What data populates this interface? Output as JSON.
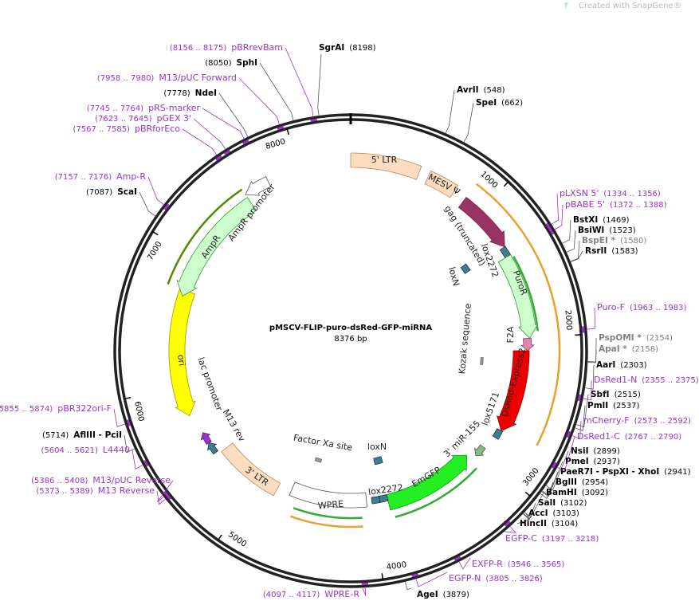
{
  "watermark": "Created with SnapGene®",
  "map": {
    "title": "pMSCV-FLIP-puro-dsRed-GFP-miRNA",
    "size": "8376 bp",
    "ticks": [
      1000,
      2000,
      3000,
      4000,
      5000,
      6000,
      7000,
      8000
    ]
  },
  "sites": [
    {
      "name": "SgrAI",
      "position": "(8198)",
      "color": "#000000"
    },
    {
      "name": "SphI",
      "position": "(8050)",
      "color": "#000000"
    },
    {
      "name": "NdeI",
      "position": "(7778)",
      "color": "#000000"
    },
    {
      "name": "ScaI",
      "position": "(7087)",
      "color": "#000000"
    },
    {
      "name": "AvrII",
      "position": "(548)",
      "color": "#000000"
    },
    {
      "name": "SpeI",
      "position": "(662)",
      "color": "#000000"
    },
    {
      "name": "BstXI",
      "position": "(1469)",
      "color": "#000000"
    },
    {
      "name": "BsiWI",
      "position": "(1523)",
      "color": "#000000"
    },
    {
      "name": "BspEI *",
      "position": "(1580)",
      "color": "#808080"
    },
    {
      "name": "RsrII",
      "position": "(1583)",
      "color": "#000000"
    },
    {
      "name": "PspOMI *",
      "position": "(2154)",
      "color": "#808080"
    },
    {
      "name": "ApaI *",
      "position": "(2158)",
      "color": "#808080"
    },
    {
      "name": "AarI",
      "position": "(2303)",
      "color": "#000000"
    },
    {
      "name": "SbfI",
      "position": "(2515)",
      "color": "#000000"
    },
    {
      "name": "PmlI",
      "position": "(2537)",
      "color": "#000000"
    },
    {
      "name": "NsiI",
      "position": "(2899)",
      "color": "#000000"
    },
    {
      "name": "PmeI",
      "position": "(2937)",
      "color": "#000000"
    },
    {
      "name": "PaeR7I - PspXI - XhoI",
      "position": "(2941)",
      "color": "#000000"
    },
    {
      "name": "BglII",
      "position": "(2954)",
      "color": "#000000"
    },
    {
      "name": "BamHI",
      "position": "(3092)",
      "color": "#000000"
    },
    {
      "name": "SalI",
      "position": "(3102)",
      "color": "#000000"
    },
    {
      "name": "AccI",
      "position": "(3103)",
      "color": "#000000"
    },
    {
      "name": "HincII",
      "position": "(3104)",
      "color": "#000000"
    },
    {
      "name": "AgeI",
      "position": "(3879)",
      "color": "#000000"
    },
    {
      "name": "AflIII - PciI",
      "position": "(5714)",
      "color": "#000000"
    }
  ],
  "primers": [
    {
      "name": "pBRrevBam",
      "range": "(8156 .. 8175)"
    },
    {
      "name": "M13/pUC Forward",
      "range": "(7958 .. 7980)"
    },
    {
      "name": "pRS-marker",
      "range": "(7745 .. 7764)"
    },
    {
      "name": "pGEX 3'",
      "range": "(7623 .. 7645)"
    },
    {
      "name": "pBRforEco",
      "range": "(7567 .. 7585)"
    },
    {
      "name": "Amp-R",
      "range": "(7157 .. 7176)"
    },
    {
      "name": "pLXSN 5'",
      "range": "(1334 .. 1356)"
    },
    {
      "name": "pBABE 5'",
      "range": "(1372 .. 1388)"
    },
    {
      "name": "Puro-F",
      "range": "(1963 .. 1983)"
    },
    {
      "name": "DsRed1-N",
      "range": "(2355 .. 2375)"
    },
    {
      "name": "mCherry-F",
      "range": "(2573 .. 2592)"
    },
    {
      "name": "DsRed1-C",
      "range": "(2767 .. 2790)"
    },
    {
      "name": "EGFP-C",
      "range": "(3197 .. 3218)"
    },
    {
      "name": "EXFP-R",
      "range": "(3546 .. 3565)"
    },
    {
      "name": "EGFP-N",
      "range": "(3805 .. 3826)"
    },
    {
      "name": "WPRE-R",
      "range": "(4097 .. 4117)"
    },
    {
      "name": "pBR322ori-F",
      "range": "(5855 .. 5874)"
    },
    {
      "name": "L4440",
      "range": "(5604 .. 5621)"
    },
    {
      "name": "M13/pUC Reverse",
      "range": "(5386 .. 5408)"
    },
    {
      "name": "M13 Reverse",
      "range": "(5373 .. 5389)"
    }
  ],
  "features": [
    {
      "label": "5' LTR"
    },
    {
      "label": "MESV Ψ"
    },
    {
      "label": "gag (truncated)"
    },
    {
      "label": "lox2272"
    },
    {
      "label": "loxN"
    },
    {
      "label": "PuroR"
    },
    {
      "label": "F2A"
    },
    {
      "label": "DsRed-Express2"
    },
    {
      "label": "lox5171"
    },
    {
      "label": "3' miR-155"
    },
    {
      "label": "EmGFP"
    },
    {
      "label": "lox2272"
    },
    {
      "label": "loxN"
    },
    {
      "label": "Factor Xa site"
    },
    {
      "label": "Kozak sequence"
    },
    {
      "label": "WPRE"
    },
    {
      "label": "3' LTR"
    },
    {
      "label": "lac promoter"
    },
    {
      "label": "M13 rev"
    },
    {
      "label": "ori"
    },
    {
      "label": "AmpR"
    },
    {
      "label": "AmpR promoter"
    }
  ]
}
